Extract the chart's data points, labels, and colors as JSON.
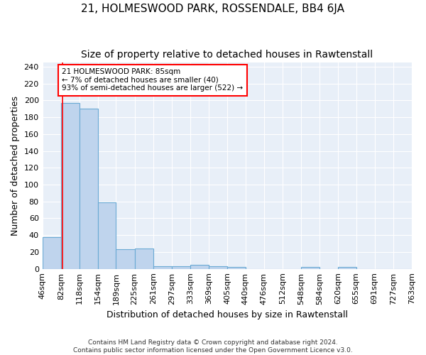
{
  "title": "21, HOLMESWOOD PARK, ROSSENDALE, BB4 6JA",
  "subtitle": "Size of property relative to detached houses in Rawtenstall",
  "xlabel": "Distribution of detached houses by size in Rawtenstall",
  "ylabel": "Number of detached properties",
  "bin_edges": [
    46,
    82,
    118,
    154,
    189,
    225,
    261,
    297,
    333,
    369,
    405,
    440,
    476,
    512,
    548,
    584,
    620,
    655,
    691,
    727,
    763
  ],
  "bar_heights": [
    38,
    197,
    190,
    79,
    23,
    24,
    3,
    3,
    5,
    3,
    2,
    0,
    0,
    0,
    2,
    0,
    2,
    0,
    0,
    0
  ],
  "bar_color": "#bfd4ed",
  "bar_edgecolor": "#6aaad4",
  "bar_linewidth": 0.8,
  "red_line_x": 85,
  "annotation_text": "21 HOLMESWOOD PARK: 85sqm\n← 7% of detached houses are smaller (40)\n93% of semi-detached houses are larger (522) →",
  "annotation_box_color": "white",
  "annotation_box_edgecolor": "red",
  "ylim": [
    0,
    245
  ],
  "yticks": [
    0,
    20,
    40,
    60,
    80,
    100,
    120,
    140,
    160,
    180,
    200,
    220,
    240
  ],
  "background_color": "#e8eff8",
  "grid_color": "white",
  "footer_line1": "Contains HM Land Registry data © Crown copyright and database right 2024.",
  "footer_line2": "Contains public sector information licensed under the Open Government Licence v3.0.",
  "title_fontsize": 11,
  "subtitle_fontsize": 10,
  "xlabel_fontsize": 9,
  "ylabel_fontsize": 9,
  "tick_fontsize": 8,
  "footer_fontsize": 6.5
}
